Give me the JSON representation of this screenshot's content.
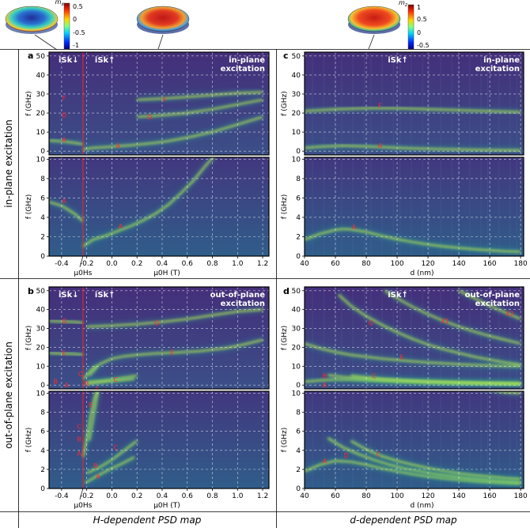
{
  "row_labels": [
    "in-plane excitation",
    "out-of-plane excitation"
  ],
  "col_labels": [
    "H-dependent PSD map",
    "d-dependent PSD map"
  ],
  "colorbars": [
    {
      "label": "m_x",
      "ticks": [
        "0.5",
        "0",
        "-0.5",
        "-1"
      ]
    },
    {
      "label": "m_z",
      "ticks": [
        "1",
        "0.5",
        "0",
        "-0.5"
      ]
    }
  ],
  "chart_data": [
    {
      "panel": "a",
      "type": "heatmap",
      "title": "in-plane excitation",
      "regions": [
        "iSk↓",
        "iSk↑"
      ],
      "xlabel": "μ0H (T)",
      "ylabel": "f (GHz)",
      "xlim": [
        -0.5,
        1.25
      ],
      "ylim_top": [
        -2,
        52
      ],
      "ylim_bottom": [
        0,
        10.2
      ],
      "xticks": [
        -0.4,
        -0.2,
        0,
        0.2,
        0.4,
        0.6,
        0.8,
        1.0,
        1.2
      ],
      "xtick_labels": [
        "-0.4",
        "-0.2",
        "0.0",
        "0.2",
        "0.4",
        "0.6",
        "0.8",
        "1.0",
        "1.2"
      ],
      "yticks_top": [
        0,
        10,
        20,
        30,
        40,
        50
      ],
      "yticks_bottom": [
        0,
        2,
        4,
        6,
        8,
        10
      ],
      "field_marker": {
        "x": -0.23,
        "label": "μ0Hs"
      },
      "series": [
        {
          "name": "A",
          "x": [
            -0.5,
            -0.4,
            -0.3,
            -0.23
          ],
          "y": [
            5.6,
            5.2,
            4.4,
            3.6
          ]
        },
        {
          "name": "A",
          "x": [
            -0.23,
            -0.15,
            -0.05,
            0.05,
            0.15,
            0.25,
            0.35,
            0.45,
            0.55,
            0.65,
            0.75,
            0.82
          ],
          "y": [
            1.0,
            1.7,
            2.1,
            2.6,
            3.1,
            3.7,
            4.4,
            5.3,
            6.5,
            7.8,
            9.4,
            10.4
          ]
        },
        {
          "name": "A",
          "x": [
            0.82,
            0.95,
            1.05,
            1.2
          ],
          "y": [
            10.4,
            13,
            15,
            18
          ]
        },
        {
          "name": "D",
          "x": [
            0.2,
            0.4,
            0.6,
            0.8,
            1.0,
            1.2
          ],
          "y": [
            18,
            18.8,
            20,
            22,
            24.5,
            27
          ]
        },
        {
          "name": "F",
          "x": [
            0.2,
            0.4,
            0.6,
            0.8,
            1.0,
            1.2
          ],
          "y": [
            27,
            27.6,
            28.5,
            29.5,
            30.5,
            31
          ]
        }
      ],
      "annotations": [
        {
          "text": "F",
          "x": -0.38,
          "y": 28,
          "sub": "top"
        },
        {
          "text": "D",
          "x": -0.38,
          "y": 19,
          "sub": "top"
        },
        {
          "text": "A",
          "x": -0.38,
          "y": 6,
          "sub": "top"
        },
        {
          "text": "A",
          "x": 0.05,
          "y": 3,
          "sub": "top"
        },
        {
          "text": "D",
          "x": 0.3,
          "y": 18,
          "sub": "top"
        },
        {
          "text": "F",
          "x": 0.42,
          "y": 27,
          "sub": "top"
        },
        {
          "text": "A",
          "x": -0.38,
          "y": 5.7,
          "sub": "bottom"
        },
        {
          "text": "A",
          "x": 0.07,
          "y": 3.1,
          "sub": "bottom"
        }
      ]
    },
    {
      "panel": "b",
      "type": "heatmap",
      "title": "out-of-plane excitation",
      "regions": [
        "iSk↓",
        "iSk↑"
      ],
      "xlabel": "μ0H (T)",
      "ylabel": "f (GHz)",
      "xlim": [
        -0.5,
        1.25
      ],
      "ylim_top": [
        -2,
        52
      ],
      "ylim_bottom": [
        0,
        10.2
      ],
      "xticks": [
        -0.4,
        -0.2,
        0,
        0.2,
        0.4,
        0.6,
        0.8,
        1.0,
        1.2
      ],
      "xtick_labels": [
        "-0.4",
        "-0.2",
        "0.0",
        "0.2",
        "0.4",
        "0.6",
        "0.8",
        "1.0",
        "1.2"
      ],
      "yticks_top": [
        0,
        10,
        20,
        30,
        40,
        50
      ],
      "yticks_bottom": [
        0,
        2,
        4,
        6,
        8,
        10
      ],
      "field_marker": {
        "x": -0.23,
        "label": "μ0Hs"
      },
      "series": [
        {
          "name": "G",
          "x": [
            -0.5,
            -0.3,
            -0.23
          ],
          "y": [
            34,
            33.5,
            33
          ]
        },
        {
          "name": "G",
          "x": [
            -0.2,
            0.0,
            0.2,
            0.4,
            0.6,
            0.8,
            1.0,
            1.2
          ],
          "y": [
            31,
            31.5,
            32.3,
            33.5,
            35,
            37,
            39,
            40
          ]
        },
        {
          "name": "E",
          "x": [
            -0.5,
            -0.3,
            -0.23
          ],
          "y": [
            17,
            16.5,
            16
          ]
        },
        {
          "name": "E",
          "x": [
            -0.18,
            -0.1,
            0.0,
            0.1,
            0.2,
            0.35,
            0.5,
            0.7,
            0.9,
            1.05,
            1.2
          ],
          "y": [
            5,
            11,
            14,
            15.3,
            16,
            16.8,
            17.2,
            18,
            19.5,
            21.5,
            24
          ]
        },
        {
          "name": "C",
          "x": [
            -0.23,
            -0.2,
            -0.17,
            -0.14,
            -0.12
          ],
          "y": [
            3.3,
            5.2,
            7.6,
            9.4,
            10.2
          ]
        },
        {
          "name": "B",
          "x": [
            -0.2,
            -0.1,
            0.0,
            0.1,
            0.2
          ],
          "y": [
            1.6,
            2.2,
            3.0,
            4.0,
            5.0
          ]
        },
        {
          "name": "A",
          "x": [
            -0.21,
            -0.12,
            -0.02,
            0.08,
            0.18
          ],
          "y": [
            0.6,
            1.3,
            2.0,
            2.6,
            3.3
          ]
        }
      ],
      "annotations": [
        {
          "text": "G",
          "x": -0.38,
          "y": 34,
          "sub": "top"
        },
        {
          "text": "E",
          "x": -0.38,
          "y": 17,
          "sub": "top"
        },
        {
          "text": "C",
          "x": -0.25,
          "y": 6,
          "sub": "top"
        },
        {
          "text": "B",
          "x": -0.45,
          "y": 2,
          "sub": "top"
        },
        {
          "text": "A",
          "x": -0.36,
          "y": 0,
          "sub": "top"
        },
        {
          "text": "B",
          "x": -0.2,
          "y": 1,
          "sub": "top"
        },
        {
          "text": "A",
          "x": -0.12,
          "y": -2,
          "sub": "top"
        },
        {
          "text": "C",
          "x": 0.03,
          "y": 3,
          "sub": "top"
        },
        {
          "text": "E",
          "x": 0.48,
          "y": 17.5,
          "sub": "top"
        },
        {
          "text": "G",
          "x": 0.36,
          "y": 33,
          "sub": "top"
        },
        {
          "text": "E",
          "x": -0.17,
          "y": 8.8,
          "sub": "bottom"
        },
        {
          "text": "C",
          "x": -0.26,
          "y": 6.5,
          "sub": "bottom"
        },
        {
          "text": "B",
          "x": -0.26,
          "y": 5.2,
          "sub": "bottom"
        },
        {
          "text": "A",
          "x": -0.26,
          "y": 3.7,
          "sub": "bottom"
        },
        {
          "text": "C",
          "x": 0.03,
          "y": 4.3,
          "sub": "bottom"
        },
        {
          "text": "B",
          "x": -0.13,
          "y": 2.4,
          "sub": "bottom"
        },
        {
          "text": "A",
          "x": -0.11,
          "y": 1.3,
          "sub": "bottom"
        }
      ]
    },
    {
      "panel": "c",
      "type": "heatmap",
      "title": "in-plane excitation",
      "regions": [
        "iSk↑"
      ],
      "xlabel": "d (nm)",
      "ylabel": "f (GHz)",
      "xlim": [
        40,
        182
      ],
      "ylim_top": [
        -2,
        52
      ],
      "ylim_bottom": [
        0,
        10.2
      ],
      "xticks": [
        40,
        60,
        80,
        100,
        120,
        140,
        160,
        180
      ],
      "xtick_labels": [
        "40",
        "60",
        "80",
        "100",
        "120",
        "140",
        "160",
        "180"
      ],
      "yticks_top": [
        0,
        10,
        20,
        30,
        40,
        50
      ],
      "yticks_bottom": [
        0,
        2,
        4,
        6,
        8,
        10
      ],
      "series": [
        {
          "name": "A",
          "x": [
            40,
            50,
            60,
            65,
            70,
            80,
            90,
            100,
            110,
            120,
            130,
            140,
            150,
            160,
            170,
            180
          ],
          "y": [
            1.7,
            2.3,
            2.7,
            2.8,
            2.75,
            2.5,
            2.1,
            1.75,
            1.45,
            1.2,
            1.0,
            0.85,
            0.7,
            0.6,
            0.5,
            0.45
          ]
        },
        {
          "name": "F",
          "x": [
            40,
            60,
            80,
            100,
            120,
            140,
            160,
            180
          ],
          "y": [
            21,
            22,
            22.5,
            22.5,
            22,
            21.5,
            21,
            20.5
          ]
        }
      ],
      "annotations": [
        {
          "text": "F",
          "x": 89,
          "y": 24,
          "sub": "top"
        },
        {
          "text": "A",
          "x": 89,
          "y": 3,
          "sub": "top"
        },
        {
          "text": "A",
          "x": 72,
          "y": 3.0,
          "sub": "bottom"
        }
      ]
    },
    {
      "panel": "d",
      "type": "heatmap",
      "title": "out-of-plane excitation",
      "regions": [
        "iSk↑"
      ],
      "xlabel": "d (nm)",
      "ylabel": "f (GHz)",
      "xlim": [
        40,
        182
      ],
      "ylim_top": [
        -2,
        52
      ],
      "ylim_bottom": [
        0,
        10.2
      ],
      "xticks": [
        40,
        60,
        80,
        100,
        120,
        140,
        160,
        180
      ],
      "xtick_labels": [
        "40",
        "60",
        "80",
        "100",
        "120",
        "140",
        "160",
        "180"
      ],
      "yticks_top": [
        0,
        10,
        20,
        30,
        40,
        50
      ],
      "yticks_bottom": [
        0,
        2,
        4,
        6,
        8,
        10
      ],
      "series": [
        {
          "name": "E",
          "x": [
            40,
            50,
            60,
            70,
            80,
            90,
            100,
            110,
            120,
            130,
            140,
            150,
            160,
            170,
            180
          ],
          "y": [
            22,
            19.5,
            17.5,
            16,
            15,
            14,
            13.3,
            12.6,
            12,
            11.5,
            11,
            10.7,
            10.4,
            10.1,
            10
          ]
        },
        {
          "name": "G",
          "x": [
            62,
            70,
            80,
            90,
            100,
            110,
            120,
            130,
            140,
            150,
            160,
            170,
            180
          ],
          "y": [
            48,
            42,
            36.5,
            32,
            28,
            24.5,
            21.5,
            19,
            17,
            15,
            13.5,
            12,
            10.8
          ]
        },
        {
          "name": "X1",
          "x": [
            92,
            100,
            110,
            120,
            130,
            140,
            150,
            160,
            170,
            180
          ],
          "y": [
            50,
            46,
            41.5,
            37.5,
            34,
            31,
            28.3,
            26,
            24,
            22
          ]
        },
        {
          "name": "X2",
          "x": [
            140,
            150,
            160,
            170,
            180
          ],
          "y": [
            50,
            46,
            42,
            38.5,
            35
          ]
        },
        {
          "name": "A",
          "x": [
            40,
            50,
            60,
            70,
            80,
            90,
            100,
            110,
            120,
            130,
            140,
            150,
            160,
            170,
            180
          ],
          "y": [
            1.8,
            2.5,
            2.9,
            2.8,
            2.5,
            2.1,
            1.8,
            1.5,
            1.25,
            1.05,
            0.9,
            0.75,
            0.65,
            0.55,
            0.5
          ]
        },
        {
          "name": "D",
          "x": [
            55,
            65,
            75,
            85,
            95,
            105,
            115,
            125,
            135,
            145,
            155,
            165,
            175,
            180
          ],
          "y": [
            5.3,
            4.3,
            3.6,
            3.0,
            2.5,
            2.1,
            1.8,
            1.5,
            1.3,
            1.1,
            0.95,
            0.8,
            0.7,
            0.65
          ]
        },
        {
          "name": "C",
          "x": [
            70,
            80,
            90,
            100,
            110,
            120,
            130,
            140,
            150,
            160,
            170,
            180
          ],
          "y": [
            5.0,
            4.1,
            3.4,
            2.9,
            2.5,
            2.15,
            1.85,
            1.6,
            1.4,
            1.25,
            1.1,
            1.0
          ]
        }
      ],
      "annotations": [
        {
          "text": "G",
          "x": 83,
          "y": 33,
          "sub": "top"
        },
        {
          "text": "X1",
          "x": 131,
          "y": 34,
          "sub": "top"
        },
        {
          "text": "X2",
          "x": 173,
          "y": 38,
          "sub": "top"
        },
        {
          "text": "E",
          "x": 103,
          "y": 15,
          "sub": "top"
        },
        {
          "text": "B",
          "x": 53,
          "y": 5,
          "sub": "top"
        },
        {
          "text": "A",
          "x": 53,
          "y": 0,
          "sub": "top"
        },
        {
          "text": "C",
          "x": 85,
          "y": 5,
          "sub": "top"
        },
        {
          "text": "A",
          "x": 53,
          "y": 2.9,
          "sub": "bottom"
        },
        {
          "text": "D",
          "x": 67,
          "y": 3.5,
          "sub": "bottom"
        },
        {
          "text": "C",
          "x": 88,
          "y": 3.6,
          "sub": "bottom"
        }
      ]
    }
  ]
}
